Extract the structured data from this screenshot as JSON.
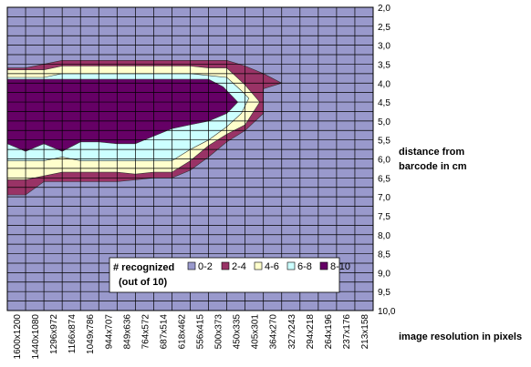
{
  "chart_data": {
    "type": "heatmap",
    "title": "",
    "xlabel": "image resolution in pixels",
    "ylabel_lines": [
      "distance from",
      "barcode in cm"
    ],
    "x_categories": [
      "1600x1200",
      "1440x1080",
      "1296x972",
      "1166x874",
      "1049x786",
      "944x707",
      "849x636",
      "764x572",
      "687x514",
      "618x462",
      "556x415",
      "500x373",
      "450x335",
      "405x301",
      "364x270",
      "327x243",
      "294x218",
      "264x196",
      "237x176",
      "213x158"
    ],
    "y_ticks": [
      "2,0",
      "2,5",
      "3,0",
      "3,5",
      "4,0",
      "4,5",
      "5,0",
      "5,5",
      "6,0",
      "6,5",
      "7,0",
      "7,5",
      "8,0",
      "8,5",
      "9,0",
      "9,5",
      "10,0"
    ],
    "ylim": [
      2.0,
      10.0
    ],
    "grid": true,
    "legend": {
      "title_lines": [
        "# recognized",
        "(out of 10)"
      ],
      "placement": "bottom-center",
      "bands": [
        {
          "label": "0-2",
          "color": "#9999cc"
        },
        {
          "label": "2-4",
          "color": "#993366"
        },
        {
          "label": "4-6",
          "color": "#ffffcc"
        },
        {
          "label": "6-8",
          "color": "#ccffff"
        },
        {
          "label": "8-10",
          "color": "#660066"
        }
      ]
    },
    "contours": [
      {
        "level": "2-4",
        "points": [
          [
            0,
            3.6
          ],
          [
            1,
            3.6
          ],
          [
            2,
            3.5
          ],
          [
            3,
            3.4
          ],
          [
            4,
            3.4
          ],
          [
            5,
            3.4
          ],
          [
            6,
            3.4
          ],
          [
            7,
            3.4
          ],
          [
            8,
            3.4
          ],
          [
            9,
            3.4
          ],
          [
            10,
            3.4
          ],
          [
            11,
            3.4
          ],
          [
            12,
            3.4
          ],
          [
            13,
            3.55
          ],
          [
            14,
            3.75
          ],
          [
            15,
            4.0
          ],
          [
            14,
            4.15
          ],
          [
            14,
            4.8
          ],
          [
            13,
            5.25
          ],
          [
            12,
            5.55
          ],
          [
            11,
            5.95
          ],
          [
            10,
            6.3
          ],
          [
            9,
            6.5
          ],
          [
            8,
            6.5
          ],
          [
            7,
            6.55
          ],
          [
            6,
            6.6
          ],
          [
            5,
            6.6
          ],
          [
            4,
            6.6
          ],
          [
            3,
            6.6
          ],
          [
            2,
            6.6
          ],
          [
            1,
            6.95
          ],
          [
            0,
            6.95
          ]
        ]
      },
      {
        "level": "4-6",
        "points": [
          [
            0,
            3.65
          ],
          [
            1,
            3.65
          ],
          [
            2,
            3.65
          ],
          [
            3,
            3.55
          ],
          [
            4,
            3.55
          ],
          [
            5,
            3.55
          ],
          [
            6,
            3.55
          ],
          [
            7,
            3.55
          ],
          [
            8,
            3.55
          ],
          [
            9,
            3.55
          ],
          [
            10,
            3.55
          ],
          [
            11,
            3.6
          ],
          [
            12,
            3.6
          ],
          [
            13,
            4.05
          ],
          [
            13.8,
            4.5
          ],
          [
            13,
            5.1
          ],
          [
            12,
            5.35
          ],
          [
            11,
            5.65
          ],
          [
            10,
            6.05
          ],
          [
            9,
            6.35
          ],
          [
            8,
            6.35
          ],
          [
            7,
            6.4
          ],
          [
            6,
            6.35
          ],
          [
            5,
            6.35
          ],
          [
            4,
            6.35
          ],
          [
            3,
            6.35
          ],
          [
            2,
            6.45
          ],
          [
            1,
            6.55
          ],
          [
            0,
            6.55
          ]
        ]
      },
      {
        "level": "6-8",
        "points": [
          [
            0,
            3.85
          ],
          [
            1,
            3.85
          ],
          [
            2,
            3.85
          ],
          [
            3,
            3.75
          ],
          [
            4,
            3.75
          ],
          [
            5,
            3.75
          ],
          [
            6,
            3.75
          ],
          [
            7,
            3.75
          ],
          [
            8,
            3.75
          ],
          [
            9,
            3.75
          ],
          [
            10,
            3.75
          ],
          [
            11,
            3.8
          ],
          [
            12,
            3.85
          ],
          [
            12.8,
            4.2
          ],
          [
            13.2,
            4.4
          ],
          [
            12.8,
            4.8
          ],
          [
            12,
            5.15
          ],
          [
            11,
            5.5
          ],
          [
            10,
            5.75
          ],
          [
            9,
            6.05
          ],
          [
            8,
            6.05
          ],
          [
            7,
            6.05
          ],
          [
            6,
            6.05
          ],
          [
            5,
            6.05
          ],
          [
            4,
            6.05
          ],
          [
            3,
            5.95
          ],
          [
            2,
            6.05
          ],
          [
            1,
            6.05
          ],
          [
            0,
            6.05
          ]
        ]
      },
      {
        "level": "8-10",
        "points": [
          [
            0,
            3.9
          ],
          [
            1,
            3.9
          ],
          [
            2,
            3.9
          ],
          [
            3,
            3.9
          ],
          [
            4,
            3.9
          ],
          [
            5,
            3.9
          ],
          [
            6,
            3.9
          ],
          [
            7,
            3.9
          ],
          [
            8,
            3.9
          ],
          [
            9,
            3.9
          ],
          [
            10,
            3.9
          ],
          [
            11,
            3.9
          ],
          [
            11.8,
            4.1
          ],
          [
            12.6,
            4.5
          ],
          [
            12,
            4.8
          ],
          [
            11,
            5.0
          ],
          [
            10,
            5.1
          ],
          [
            9,
            5.2
          ],
          [
            8,
            5.4
          ],
          [
            7,
            5.6
          ],
          [
            6,
            5.6
          ],
          [
            5,
            5.55
          ],
          [
            4,
            5.55
          ],
          [
            3,
            5.8
          ],
          [
            2,
            5.6
          ],
          [
            1,
            5.8
          ],
          [
            0,
            5.6
          ]
        ]
      }
    ]
  }
}
